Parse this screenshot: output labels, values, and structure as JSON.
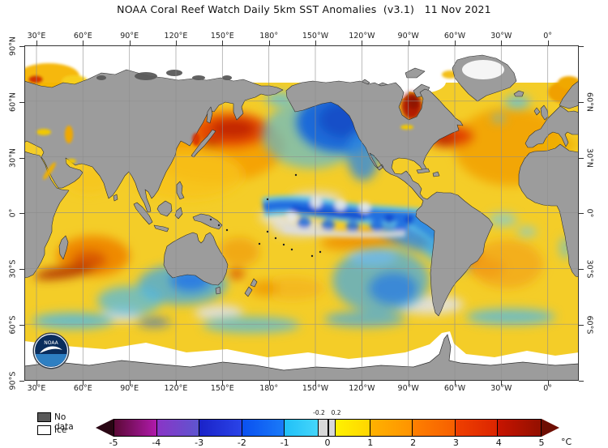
{
  "title": "NOAA Coral Reef Watch Daily 5km SST Anomalies  (v3.1)   11 Nov 2021",
  "axes": {
    "lon_labels": [
      "30°E",
      "60°E",
      "90°E",
      "120°E",
      "150°E",
      "180°",
      "150°W",
      "120°W",
      "90°W",
      "60°W",
      "30°W",
      "0°"
    ],
    "lat_labels_left": [
      "90°N",
      "60°N",
      "30°N",
      "0°",
      "30°S",
      "60°S",
      "90°S"
    ],
    "lat_labels_right": [
      "60°N",
      "30°N",
      "0°",
      "30°S",
      "60°S"
    ]
  },
  "legend": {
    "no_data_label": "No data",
    "no_data_color": "#595959",
    "ice_label": "Ice",
    "ice_color": "#ffffff"
  },
  "colorbar": {
    "unit": "°C",
    "ticks": [
      "-5",
      "-4",
      "-3",
      "-2",
      "-1",
      "0",
      "1",
      "2",
      "3",
      "4",
      "5"
    ],
    "tick_values": [
      -5,
      -4,
      -3,
      -2,
      -1,
      0,
      1,
      2,
      3,
      4,
      5
    ],
    "minor_ticks": [
      "-0.2",
      "0.2"
    ],
    "minor_tick_values": [
      -0.2,
      0.2
    ],
    "range": [
      -5,
      5
    ],
    "segments": [
      {
        "from": -5,
        "to": -4,
        "c1": "#5c0936",
        "c2": "#b01aab"
      },
      {
        "from": -4,
        "to": -3,
        "c1": "#8a35c6",
        "c2": "#5e55d0"
      },
      {
        "from": -3,
        "to": -2,
        "c1": "#1a22c8",
        "c2": "#2a44e8"
      },
      {
        "from": -2,
        "to": -1,
        "c1": "#0a50f0",
        "c2": "#1a7af8"
      },
      {
        "from": -1,
        "to": -0.2,
        "c1": "#20c0f8",
        "c2": "#45d6fa"
      },
      {
        "from": -0.2,
        "to": 0.2,
        "c1": "#d8d8d8",
        "c2": "#d8d8d8"
      },
      {
        "from": 0.2,
        "to": 1,
        "c1": "#fff200",
        "c2": "#ffd600"
      },
      {
        "from": 1,
        "to": 2,
        "c1": "#ffb200",
        "c2": "#ff9300"
      },
      {
        "from": 2,
        "to": 3,
        "c1": "#ff8000",
        "c2": "#f65f00"
      },
      {
        "from": 3,
        "to": 4,
        "c1": "#ef4000",
        "c2": "#dc2500"
      },
      {
        "from": 4,
        "to": 5,
        "c1": "#c81400",
        "c2": "#931000"
      }
    ],
    "left_arrow_color": "#2a0614",
    "right_arrow_color": "#6e0e03"
  },
  "map": {
    "land_color": "#9c9c9c",
    "ice_color": "#ffffff",
    "no_data_color": "#5a5a5a",
    "grid_interval": "30°"
  },
  "logo": {
    "text": "NOAA"
  }
}
